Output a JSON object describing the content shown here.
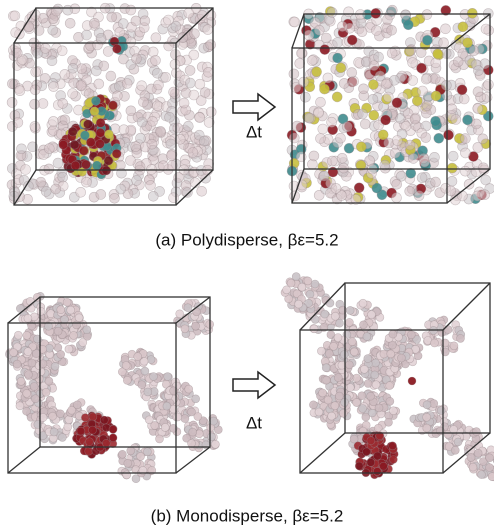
{
  "panel_a": {
    "arrow_label": "Δt",
    "caption": "(a) Polydisperse, βε=5.2"
  },
  "panel_b": {
    "arrow_label": "Δt",
    "caption": "(b) Monodisperse, βε=5.2"
  }
}
